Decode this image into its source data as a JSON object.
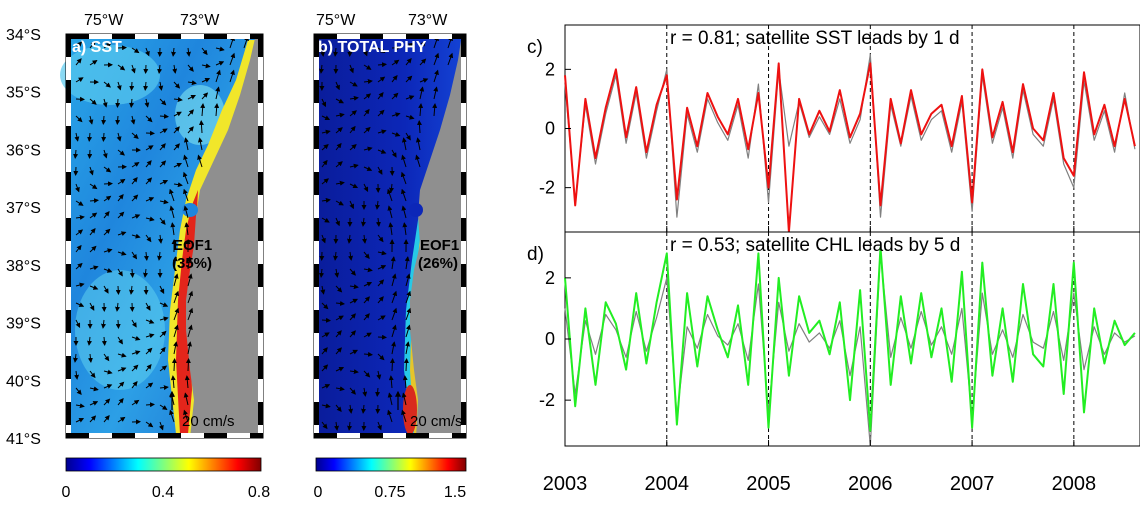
{
  "maps": {
    "lat_labels": [
      "34°S",
      "35°S",
      "36°S",
      "37°S",
      "38°S",
      "39°S",
      "40°S",
      "41°S"
    ],
    "lon_labels": [
      "75°W",
      "73°W"
    ],
    "scale_arrow": "20 cm/s",
    "panel_a": {
      "title": "a) SST",
      "eof": "EOF1",
      "pct": "(35%)",
      "colorbar_ticks": [
        "0",
        "0.4",
        "0.8"
      ]
    },
    "panel_b": {
      "title": "b) TOTAL PHY",
      "eof": "EOF1",
      "pct": "(26%)",
      "colorbar_ticks": [
        "0",
        "0.75",
        "1.5"
      ]
    }
  },
  "chart_data": [
    {
      "type": "line",
      "panel": "c)",
      "annotation": "r = 0.81; satellite SST leads by 1 d",
      "ylim": [
        -3.5,
        3.5
      ],
      "yticks": [
        -2,
        0,
        2
      ],
      "xlim": [
        2003,
        2008.65
      ],
      "xticks": [
        2003,
        2004,
        2005,
        2006,
        2007,
        2008
      ],
      "vlines": [
        2004,
        2005,
        2006,
        2007,
        2008
      ],
      "series": [
        {
          "color": "#808080",
          "x": [
            2003.0,
            2003.1,
            2003.2,
            2003.3,
            2003.4,
            2003.5,
            2003.6,
            2003.7,
            2003.8,
            2003.9,
            2004.0,
            2004.1,
            2004.2,
            2004.3,
            2004.4,
            2004.5,
            2004.6,
            2004.7,
            2004.8,
            2004.9,
            2005.0,
            2005.1,
            2005.2,
            2005.3,
            2005.4,
            2005.5,
            2005.6,
            2005.7,
            2005.8,
            2005.9,
            2006.0,
            2006.1,
            2006.2,
            2006.3,
            2006.4,
            2006.5,
            2006.6,
            2006.7,
            2006.8,
            2006.9,
            2007.0,
            2007.1,
            2007.2,
            2007.3,
            2007.4,
            2007.5,
            2007.6,
            2007.7,
            2007.8,
            2007.9,
            2008.0,
            2008.1,
            2008.2,
            2008.3,
            2008.4,
            2008.5,
            2008.6
          ],
          "y": [
            1.5,
            -2.5,
            0.8,
            -1.2,
            0.5,
            1.8,
            -0.5,
            1.2,
            -1.0,
            0.6,
            2.0,
            -3.0,
            0.5,
            -0.8,
            1.0,
            0.2,
            -0.4,
            0.8,
            -1.0,
            1.5,
            -2.5,
            2.0,
            -0.6,
            0.9,
            -0.3,
            0.4,
            -0.2,
            1.0,
            -0.5,
            0.3,
            2.5,
            -3.0,
            0.8,
            -0.6,
            1.1,
            -0.4,
            0.3,
            0.6,
            -0.8,
            0.9,
            -2.8,
            1.8,
            -0.5,
            0.7,
            -1.0,
            1.3,
            -0.2,
            -0.6,
            1.0,
            -1.2,
            -2.0,
            1.6,
            -0.4,
            0.6,
            -0.8,
            1.2,
            -0.7
          ]
        },
        {
          "color": "#ee1111",
          "x": [
            2003.0,
            2003.1,
            2003.2,
            2003.3,
            2003.4,
            2003.5,
            2003.6,
            2003.7,
            2003.8,
            2003.9,
            2004.0,
            2004.1,
            2004.2,
            2004.3,
            2004.4,
            2004.5,
            2004.6,
            2004.7,
            2004.8,
            2004.9,
            2005.0,
            2005.1,
            2005.2,
            2005.3,
            2005.4,
            2005.5,
            2005.6,
            2005.7,
            2005.8,
            2005.9,
            2006.0,
            2006.1,
            2006.2,
            2006.3,
            2006.4,
            2006.5,
            2006.6,
            2006.7,
            2006.8,
            2006.9,
            2007.0,
            2007.1,
            2007.2,
            2007.3,
            2007.4,
            2007.5,
            2007.6,
            2007.7,
            2007.8,
            2007.9,
            2008.0,
            2008.1,
            2008.2,
            2008.3,
            2008.4,
            2008.5,
            2008.6
          ],
          "y": [
            1.8,
            -2.6,
            1.0,
            -1.0,
            0.7,
            2.0,
            -0.3,
            1.4,
            -0.8,
            0.8,
            1.8,
            -2.4,
            0.7,
            -0.6,
            1.2,
            0.4,
            -0.2,
            1.0,
            -0.7,
            1.2,
            -2.0,
            2.2,
            -3.5,
            1.0,
            -0.2,
            0.6,
            -0.1,
            1.3,
            -0.3,
            0.5,
            2.2,
            -2.6,
            1.0,
            -0.5,
            1.3,
            -0.2,
            0.5,
            0.8,
            -0.6,
            1.1,
            -2.5,
            2.0,
            -0.3,
            0.9,
            -0.8,
            1.5,
            0.0,
            -0.4,
            1.2,
            -1.0,
            -1.6,
            1.9,
            -0.2,
            0.8,
            -0.6,
            1.0,
            -0.6
          ]
        }
      ]
    },
    {
      "type": "line",
      "panel": "d)",
      "annotation": "r = 0.53; satellite CHL leads by 5 d",
      "ylim": [
        -3.5,
        3.5
      ],
      "yticks": [
        -2,
        0,
        2
      ],
      "xlim": [
        2003,
        2008.65
      ],
      "xticks": [
        2003,
        2004,
        2005,
        2006,
        2007,
        2008
      ],
      "vlines": [
        2004,
        2005,
        2006,
        2007,
        2008
      ],
      "series": [
        {
          "color": "#808080",
          "x": [
            2003.0,
            2003.1,
            2003.2,
            2003.3,
            2003.4,
            2003.5,
            2003.6,
            2003.7,
            2003.8,
            2003.9,
            2004.0,
            2004.1,
            2004.2,
            2004.3,
            2004.4,
            2004.5,
            2004.6,
            2004.7,
            2004.8,
            2004.9,
            2005.0,
            2005.1,
            2005.2,
            2005.3,
            2005.4,
            2005.5,
            2005.6,
            2005.7,
            2005.8,
            2005.9,
            2006.0,
            2006.1,
            2006.2,
            2006.3,
            2006.4,
            2006.5,
            2006.6,
            2006.7,
            2006.8,
            2006.9,
            2007.0,
            2007.1,
            2007.2,
            2007.3,
            2007.4,
            2007.5,
            2007.6,
            2007.7,
            2007.8,
            2007.9,
            2008.0,
            2008.1,
            2008.2,
            2008.3,
            2008.4,
            2008.5,
            2008.6
          ],
          "y": [
            1.0,
            -1.8,
            0.6,
            -0.5,
            0.8,
            0.3,
            -0.6,
            0.9,
            -0.4,
            0.7,
            2.0,
            -2.5,
            0.4,
            -0.3,
            0.8,
            0.1,
            -0.2,
            0.5,
            -0.7,
            1.8,
            -2.4,
            1.2,
            -0.4,
            0.5,
            -0.1,
            0.2,
            -0.3,
            0.6,
            -1.2,
            0.4,
            -3.5,
            2.8,
            -0.6,
            0.7,
            -0.3,
            0.9,
            -0.2,
            0.4,
            -0.5,
            1.0,
            -2.6,
            1.5,
            -0.5,
            0.3,
            -0.6,
            0.8,
            -0.1,
            -0.3,
            0.9,
            -0.7,
            1.5,
            -1.0,
            0.4,
            -0.5,
            0.2,
            -0.1,
            0.1
          ]
        },
        {
          "color": "#22ee22",
          "x": [
            2003.0,
            2003.1,
            2003.2,
            2003.3,
            2003.4,
            2003.5,
            2003.6,
            2003.7,
            2003.8,
            2003.9,
            2004.0,
            2004.1,
            2004.2,
            2004.3,
            2004.4,
            2004.5,
            2004.6,
            2004.7,
            2004.8,
            2004.9,
            2005.0,
            2005.1,
            2005.2,
            2005.3,
            2005.4,
            2005.5,
            2005.6,
            2005.7,
            2005.8,
            2005.9,
            2006.0,
            2006.1,
            2006.2,
            2006.3,
            2006.4,
            2006.5,
            2006.6,
            2006.7,
            2006.8,
            2006.9,
            2007.0,
            2007.1,
            2007.2,
            2007.3,
            2007.4,
            2007.5,
            2007.6,
            2007.7,
            2007.8,
            2007.9,
            2008.0,
            2008.1,
            2008.2,
            2008.3,
            2008.4,
            2008.5,
            2008.6
          ],
          "y": [
            2.0,
            -2.2,
            1.0,
            -1.5,
            1.2,
            0.5,
            -1.0,
            1.5,
            -0.8,
            1.2,
            2.8,
            -2.8,
            1.5,
            -0.9,
            1.4,
            0.3,
            -0.6,
            1.1,
            -1.5,
            2.8,
            -2.9,
            2.0,
            -1.2,
            1.4,
            0.2,
            0.6,
            -0.5,
            1.2,
            -2.0,
            1.6,
            -3.0,
            3.0,
            -1.5,
            1.4,
            -0.8,
            1.5,
            -0.6,
            1.0,
            -1.4,
            2.2,
            -2.9,
            2.5,
            -1.2,
            1.0,
            -1.4,
            1.8,
            -0.5,
            -0.9,
            1.8,
            -1.8,
            2.5,
            -2.4,
            1.0,
            -0.8,
            0.6,
            -0.2,
            0.2
          ]
        }
      ]
    }
  ]
}
